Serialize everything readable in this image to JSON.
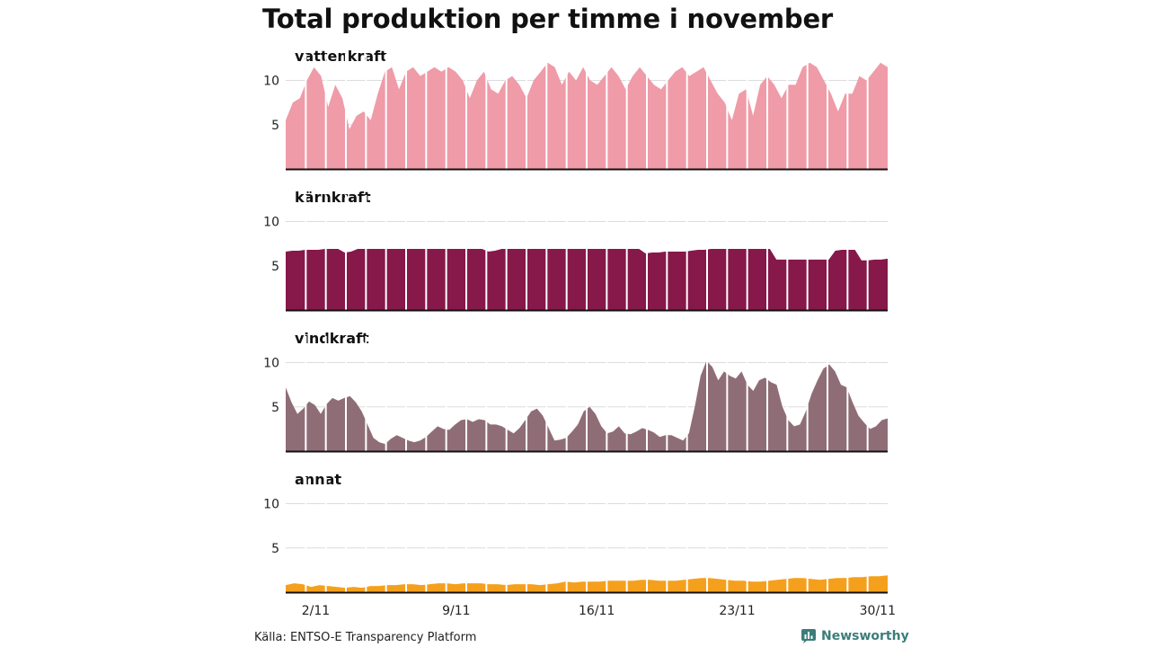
{
  "chart_data": {
    "type": "area",
    "title": "Total produktion per timme i november",
    "x_ticks": [
      {
        "day": 2,
        "label": "2/11"
      },
      {
        "day": 9,
        "label": "9/11"
      },
      {
        "day": 16,
        "label": "16/11"
      },
      {
        "day": 23,
        "label": "23/11"
      },
      {
        "day": 30,
        "label": "30/11"
      }
    ],
    "x_range": [
      1,
      30
    ],
    "y_ticks": [
      5,
      10
    ],
    "ylim": [
      0,
      12
    ],
    "series": [
      {
        "name": "vattenkraft",
        "color": "#ef9ba8",
        "values": [
          5.5,
          7.5,
          8.0,
          10.0,
          11.5,
          10.5,
          7.0,
          9.5,
          8.0,
          4.5,
          6.0,
          6.5,
          5.5,
          8.5,
          11.0,
          11.5,
          9.0,
          11.0,
          11.5,
          10.5,
          11.0,
          11.5,
          11.0,
          11.5,
          11.0,
          10.0,
          8.0,
          10.0,
          11.0,
          9.0,
          8.5,
          10.0,
          10.5,
          9.5,
          8.0,
          10.0,
          11.0,
          12.0,
          11.5,
          9.5,
          11.0,
          10.0,
          11.5,
          10.0,
          9.5,
          10.5,
          11.5,
          10.5,
          9.0,
          10.5,
          11.5,
          10.5,
          9.5,
          9.0,
          10.0,
          11.0,
          11.5,
          10.5,
          11.0,
          11.5,
          10.0,
          8.5,
          7.5,
          5.5,
          8.5,
          9.0,
          6.0,
          9.5,
          10.5,
          9.5,
          8.0,
          9.5,
          9.5,
          11.5,
          12.0,
          11.5,
          10.0,
          8.5,
          6.5,
          8.5,
          8.5,
          10.5,
          10.0,
          11.0,
          12.0,
          11.5
        ]
      },
      {
        "name": "kärnkraft",
        "color": "#86184a",
        "values": [
          6.6,
          6.7,
          6.7,
          6.8,
          6.8,
          6.8,
          6.9,
          6.9,
          6.9,
          6.5,
          6.6,
          6.9,
          6.9,
          6.9,
          6.9,
          6.9,
          6.9,
          6.9,
          6.9,
          6.9,
          6.9,
          6.9,
          6.9,
          6.9,
          6.9,
          6.9,
          6.9,
          6.9,
          6.9,
          6.9,
          6.9,
          6.6,
          6.7,
          6.9,
          6.9,
          6.9,
          6.9,
          6.9,
          6.9,
          6.9,
          6.9,
          6.9,
          6.9,
          6.9,
          6.9,
          6.9,
          6.9,
          6.9,
          6.9,
          6.9,
          6.9,
          6.9,
          6.9,
          6.9,
          6.9,
          6.4,
          6.5,
          6.5,
          6.6,
          6.6,
          6.6,
          6.6,
          6.7,
          6.8,
          6.8,
          6.9,
          6.9,
          6.9,
          6.9,
          6.9,
          6.9,
          6.9,
          6.9,
          6.9,
          6.9,
          5.7,
          5.7,
          5.7,
          5.7,
          5.7,
          5.7,
          5.7,
          5.7,
          5.7,
          6.7,
          6.8,
          6.8,
          6.8,
          5.6,
          5.6,
          5.7,
          5.7,
          5.8
        ]
      },
      {
        "name": "vindkraft",
        "color": "#8f6d77",
        "values": [
          7.2,
          5.5,
          4.2,
          4.8,
          5.6,
          5.2,
          4.2,
          5.3,
          6.0,
          5.7,
          6.0,
          6.2,
          5.5,
          4.5,
          3.0,
          1.5,
          1.0,
          0.8,
          1.4,
          1.8,
          1.5,
          1.2,
          1.0,
          1.2,
          1.6,
          2.2,
          2.8,
          2.5,
          2.4,
          3.0,
          3.5,
          3.6,
          3.3,
          3.6,
          3.5,
          3.0,
          3.0,
          2.8,
          2.4,
          2.0,
          2.6,
          3.5,
          4.5,
          4.8,
          4.0,
          2.6,
          1.2,
          1.3,
          1.5,
          2.2,
          3.0,
          4.5,
          5.0,
          4.2,
          2.8,
          2.0,
          2.2,
          2.8,
          2.0,
          1.9,
          2.2,
          2.6,
          2.4,
          2.1,
          1.6,
          1.8,
          1.8,
          1.5,
          1.2,
          2.0,
          5.0,
          8.5,
          10.2,
          9.5,
          8.0,
          9.0,
          8.5,
          8.2,
          9.0,
          7.5,
          6.8,
          8.0,
          8.3,
          7.8,
          7.5,
          5.0,
          3.5,
          2.8,
          3.0,
          4.5,
          6.5,
          8.0,
          9.3,
          9.8,
          9.0,
          7.5,
          7.2,
          5.5,
          4.0,
          3.2,
          2.5,
          2.8,
          3.5,
          3.7
        ]
      },
      {
        "name": "annat",
        "color": "#f5a01d",
        "values": [
          0.8,
          1.0,
          0.9,
          0.6,
          0.8,
          0.7,
          0.6,
          0.5,
          0.6,
          0.5,
          0.7,
          0.7,
          0.8,
          0.8,
          0.9,
          0.9,
          0.8,
          0.9,
          1.0,
          1.0,
          0.9,
          1.0,
          1.0,
          1.0,
          0.9,
          0.9,
          0.8,
          0.9,
          0.9,
          0.9,
          0.8,
          0.9,
          1.0,
          1.2,
          1.1,
          1.2,
          1.2,
          1.2,
          1.3,
          1.3,
          1.3,
          1.3,
          1.4,
          1.4,
          1.3,
          1.3,
          1.3,
          1.4,
          1.5,
          1.6,
          1.6,
          1.5,
          1.4,
          1.3,
          1.3,
          1.2,
          1.2,
          1.3,
          1.4,
          1.5,
          1.6,
          1.6,
          1.5,
          1.4,
          1.5,
          1.6,
          1.6,
          1.7,
          1.7,
          1.8,
          1.8,
          1.9
        ]
      }
    ]
  },
  "footer": {
    "source": "Källa: ENTSO-E Transparency Platform",
    "brand": "Newsworthy"
  }
}
